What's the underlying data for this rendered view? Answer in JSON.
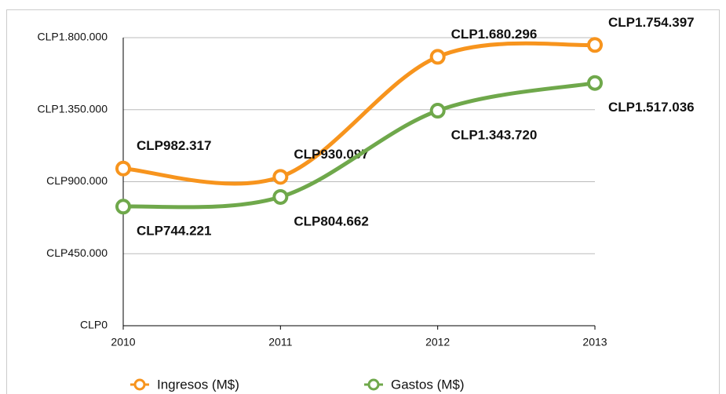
{
  "chart_data": {
    "type": "line",
    "categories": [
      "2010",
      "2011",
      "2012",
      "2013"
    ],
    "series": [
      {
        "name": "Ingresos (M$)",
        "color": "#f7941d",
        "values": [
          982317,
          930097,
          1680296,
          1754397
        ],
        "value_labels": [
          "CLP982.317",
          "CLP930.097",
          "CLP1.680.296",
          "CLP1.754.397"
        ]
      },
      {
        "name": "Gastos (M$)",
        "color": "#6fa84b",
        "values": [
          744221,
          804662,
          1343720,
          1517036
        ],
        "value_labels": [
          "CLP744.221",
          "CLP804.662",
          "CLP1.343.720",
          "CLP1.517.036"
        ]
      }
    ],
    "ylim": [
      0,
      1800000
    ],
    "yticks": [
      {
        "value": 0,
        "label": "CLP0"
      },
      {
        "value": 450000,
        "label": "CLP450.000"
      },
      {
        "value": 900000,
        "label": "CLP900.000"
      },
      {
        "value": 1350000,
        "label": "CLP1.350.000"
      },
      {
        "value": 1800000,
        "label": "CLP1.800.000"
      }
    ],
    "grid": true,
    "legend": "bottom"
  }
}
